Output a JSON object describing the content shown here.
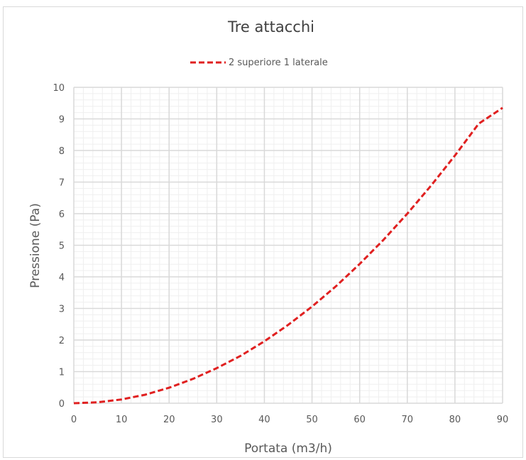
{
  "chart_data": {
    "type": "line",
    "title": "Tre attacchi",
    "xlabel": "Portata (m3/h)",
    "ylabel": "Pressione (Pa)",
    "xlim": [
      0,
      90
    ],
    "ylim": [
      0,
      10
    ],
    "xticks": [
      "0",
      "10",
      "20",
      "30",
      "40",
      "50",
      "60",
      "70",
      "80",
      "90"
    ],
    "yticks": [
      "0",
      "1",
      "2",
      "3",
      "4",
      "5",
      "6",
      "7",
      "8",
      "9",
      "10"
    ],
    "grid": true,
    "minor_grid": true,
    "legend_position": "top",
    "series": [
      {
        "name": "2 superiore 1 laterale",
        "color": "#e02020",
        "dash": "dashed",
        "x": [
          0,
          5,
          10,
          15,
          20,
          25,
          30,
          35,
          40,
          45,
          50,
          55,
          60,
          65,
          70,
          75,
          80,
          85,
          90
        ],
        "y": [
          0,
          0.03,
          0.12,
          0.27,
          0.49,
          0.77,
          1.11,
          1.5,
          1.96,
          2.48,
          3.06,
          3.7,
          4.41,
          5.17,
          6.0,
          6.89,
          7.84,
          8.85,
          9.35
        ]
      }
    ]
  },
  "colors": {
    "major_grid": "#d9d9d9",
    "minor_grid": "#efefef",
    "frame_border": "#d9d9d9"
  }
}
